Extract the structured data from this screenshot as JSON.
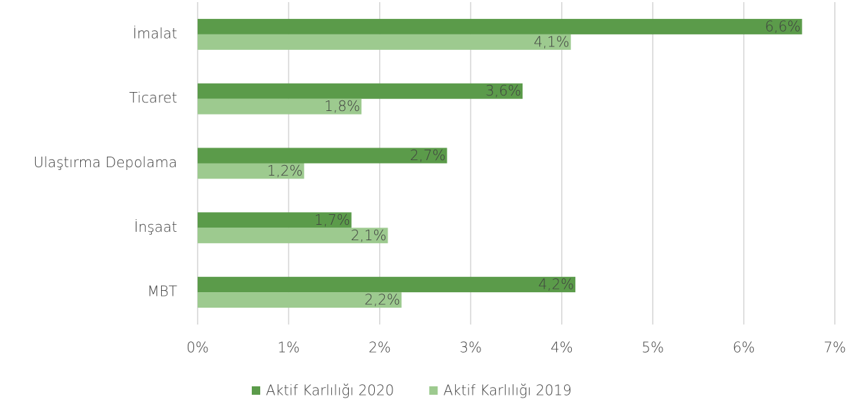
{
  "chart_data": {
    "type": "bar",
    "orientation": "horizontal",
    "categories": [
      "İmalat",
      "Ticaret",
      "Ulaştırma Depolama",
      "İnşaat",
      "MBT"
    ],
    "series": [
      {
        "name": "Aktif Karlılığı 2020",
        "color": "#5b9b4a",
        "values": [
          6.64,
          3.57,
          2.74,
          1.69,
          4.15
        ],
        "value_labels": [
          "6,6%",
          "3,6%",
          "2,7%",
          "1,7%",
          "4,2%"
        ]
      },
      {
        "name": "Aktif Karlılığı 2019",
        "color": "#9dca8f",
        "values": [
          4.1,
          1.8,
          1.17,
          2.09,
          2.24
        ],
        "value_labels": [
          "4,1%",
          "1,8%",
          "1,2%",
          "2,1%",
          "2,2%"
        ]
      }
    ],
    "xlim": [
      0,
      7
    ],
    "xticks": [
      {
        "value": 0,
        "label": "0%"
      },
      {
        "value": 1,
        "label": "1%"
      },
      {
        "value": 2,
        "label": "2%"
      },
      {
        "value": 3,
        "label": "3%"
      },
      {
        "value": 4,
        "label": "4%"
      },
      {
        "value": 5,
        "label": "5%"
      },
      {
        "value": 6,
        "label": "6%"
      },
      {
        "value": 7,
        "label": "7%"
      }
    ],
    "grid": true,
    "legend": "bottom"
  }
}
